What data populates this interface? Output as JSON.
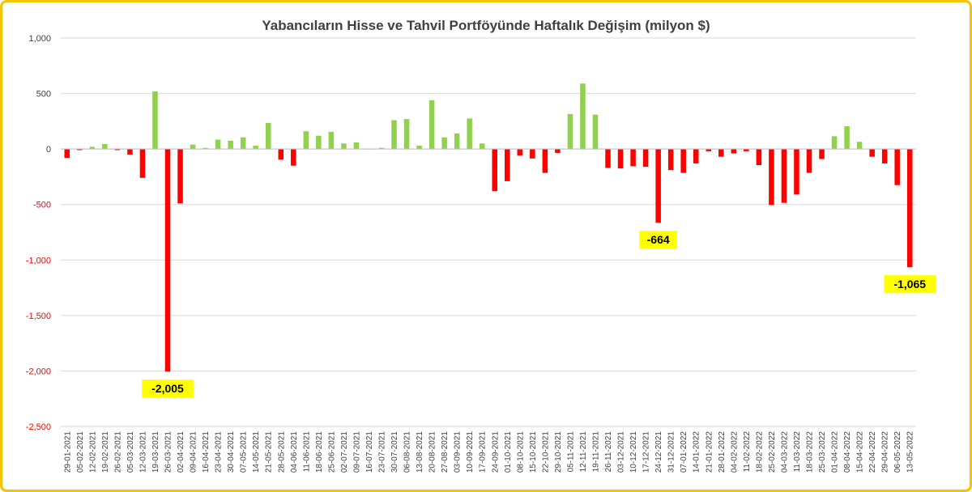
{
  "chart_data": {
    "type": "bar",
    "title": "Yabancıların Hisse ve Tahvil Portföyünde Haftalık Değişim (milyon $)",
    "ylim": [
      -2500,
      1000
    ],
    "yticks": [
      1000,
      500,
      0,
      -500,
      -1000,
      -1500,
      -2000,
      -2500
    ],
    "ytick_labels": [
      "1,000",
      "500",
      "0",
      "-500",
      "-1,000",
      "-1,500",
      "-2,000",
      "-2,500"
    ],
    "grid": true,
    "legend": "none",
    "colors": {
      "positive": "#92d050",
      "negative": "#ff0000",
      "negative_tick": "#ff0000",
      "positive_tick": "#404040",
      "callout_bg": "#ffff00",
      "frame": "#f5c400",
      "grid": "#d9d9d9"
    },
    "categories": [
      "29-01-2021",
      "05-02-2021",
      "12-02-2021",
      "19-02-2021",
      "26-02-2021",
      "05-03-2021",
      "12-03-2021",
      "19-03-2021",
      "26-03-2021",
      "02-04-2021",
      "09-04-2021",
      "16-04-2021",
      "23-04-2021",
      "30-04-2021",
      "07-05-2021",
      "14-05-2021",
      "21-05-2021",
      "28-05-2021",
      "04-06-2021",
      "11-06-2021",
      "18-06-2021",
      "25-06-2021",
      "02-07-2021",
      "09-07-2021",
      "16-07-2021",
      "23-07-2021",
      "30-07-2021",
      "06-08-2021",
      "13-08-2021",
      "20-08-2021",
      "27-08-2021",
      "03-09-2021",
      "10-09-2021",
      "17-09-2021",
      "24-09-2021",
      "01-10-2021",
      "08-10-2021",
      "15-10-2021",
      "22-10-2021",
      "29-10-2021",
      "05-11-2021",
      "12-11-2021",
      "19-11-2021",
      "26-11-2021",
      "03-12-2021",
      "10-12-2021",
      "17-12-2021",
      "24-12-2021",
      "31-12-2021",
      "07-01-2022",
      "14-01-2022",
      "21-01-2022",
      "28-01-2022",
      "04-02-2022",
      "11-02-2022",
      "18-02-2022",
      "25-02-2022",
      "04-03-2022",
      "11-03-2022",
      "18-03-2022",
      "25-03-2022",
      "01-04-2022",
      "08-04-2022",
      "15-04-2022",
      "22-04-2022",
      "29-04-2022",
      "06-05-2022",
      "13-05-2022"
    ],
    "values": [
      -80,
      -10,
      20,
      45,
      -10,
      -50,
      -260,
      520,
      -2005,
      -490,
      40,
      10,
      85,
      75,
      105,
      30,
      235,
      -95,
      -150,
      160,
      120,
      155,
      50,
      60,
      0,
      10,
      260,
      270,
      30,
      440,
      105,
      140,
      275,
      50,
      -380,
      -290,
      -60,
      -85,
      -215,
      -35,
      315,
      590,
      310,
      -170,
      -175,
      -155,
      -160,
      -664,
      -190,
      -215,
      -130,
      -20,
      -70,
      -40,
      -20,
      -145,
      -505,
      -485,
      -410,
      -215,
      -90,
      115,
      205,
      65,
      -70,
      -130,
      -325,
      -1065
    ],
    "annotations": [
      {
        "category": "26-03-2021",
        "label": "-2,005"
      },
      {
        "category": "24-12-2021",
        "label": "-664"
      },
      {
        "category": "13-05-2022",
        "label": "-1,065"
      }
    ]
  }
}
